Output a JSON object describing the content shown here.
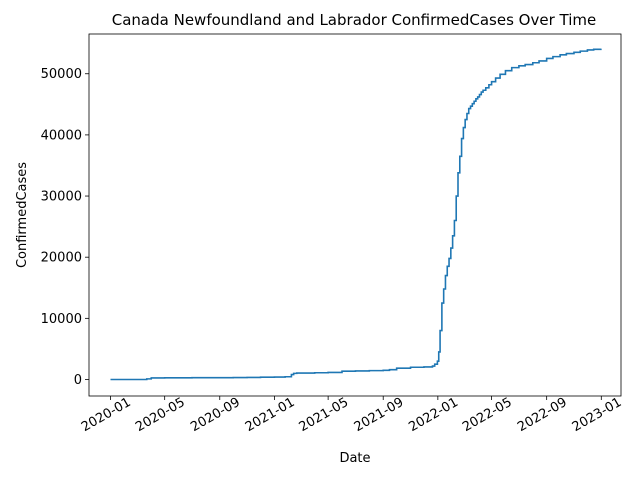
{
  "chart_data": {
    "type": "line",
    "title": "Canada Newfoundland and Labrador ConfirmedCases Over Time",
    "xlabel": "Date",
    "ylabel": "ConfirmedCases",
    "x_ticks": [
      "2020-01",
      "2020-05",
      "2020-09",
      "2021-01",
      "2021-05",
      "2021-09",
      "2022-01",
      "2022-05",
      "2022-09",
      "2023-01"
    ],
    "y_ticks": [
      0,
      10000,
      20000,
      30000,
      40000,
      50000
    ],
    "xlim": [
      "2019-11-14",
      "2023-02-14"
    ],
    "ylim": [
      -2700,
      56500
    ],
    "grid": false,
    "series_color": "#1f77b4",
    "series": [
      {
        "x": [
          "2020-01-01",
          "2020-03-14",
          "2020-03-22",
          "2020-04-01",
          "2020-05-01",
          "2020-06-01",
          "2020-07-01",
          "2020-08-01",
          "2020-09-01",
          "2020-10-01",
          "2020-11-01",
          "2020-12-01",
          "2021-01-01",
          "2021-01-25",
          "2021-02-08",
          "2021-02-13",
          "2021-02-20",
          "2021-03-01",
          "2021-04-01",
          "2021-05-01",
          "2021-06-01",
          "2021-07-01",
          "2021-08-01",
          "2021-09-01",
          "2021-09-15",
          "2021-10-01",
          "2021-11-01",
          "2021-12-01",
          "2021-12-20",
          "2021-12-25",
          "2021-12-31",
          "2022-01-03",
          "2022-01-06",
          "2022-01-10",
          "2022-01-14",
          "2022-01-18",
          "2022-01-22",
          "2022-01-26",
          "2022-01-30",
          "2022-02-03",
          "2022-02-07",
          "2022-02-11",
          "2022-02-15",
          "2022-02-19",
          "2022-02-23",
          "2022-02-27",
          "2022-03-03",
          "2022-03-07",
          "2022-03-11",
          "2022-03-15",
          "2022-03-19",
          "2022-03-23",
          "2022-03-27",
          "2022-03-31",
          "2022-04-04",
          "2022-04-08",
          "2022-04-12",
          "2022-04-18",
          "2022-04-25",
          "2022-05-01",
          "2022-05-10",
          "2022-05-20",
          "2022-06-01",
          "2022-06-15",
          "2022-07-01",
          "2022-07-15",
          "2022-08-01",
          "2022-08-15",
          "2022-09-01",
          "2022-09-15",
          "2022-10-01",
          "2022-10-15",
          "2022-11-01",
          "2022-11-15",
          "2022-12-01",
          "2022-12-15",
          "2022-12-31"
        ],
        "values": [
          0,
          0,
          100,
          250,
          270,
          280,
          290,
          295,
          300,
          310,
          330,
          370,
          400,
          450,
          800,
          1000,
          1050,
          1050,
          1100,
          1150,
          1350,
          1400,
          1450,
          1500,
          1600,
          1850,
          2000,
          2050,
          2200,
          2500,
          3000,
          4500,
          8000,
          12500,
          14800,
          17000,
          18500,
          19800,
          21500,
          23500,
          26000,
          30000,
          33800,
          36500,
          39400,
          41200,
          42500,
          43500,
          44300,
          44700,
          45100,
          45500,
          45900,
          46200,
          46600,
          47000,
          47300,
          47700,
          48200,
          48700,
          49300,
          49900,
          50500,
          51000,
          51300,
          51500,
          51800,
          52100,
          52500,
          52800,
          53100,
          53300,
          53500,
          53700,
          53900,
          54000,
          54100
        ]
      }
    ]
  }
}
